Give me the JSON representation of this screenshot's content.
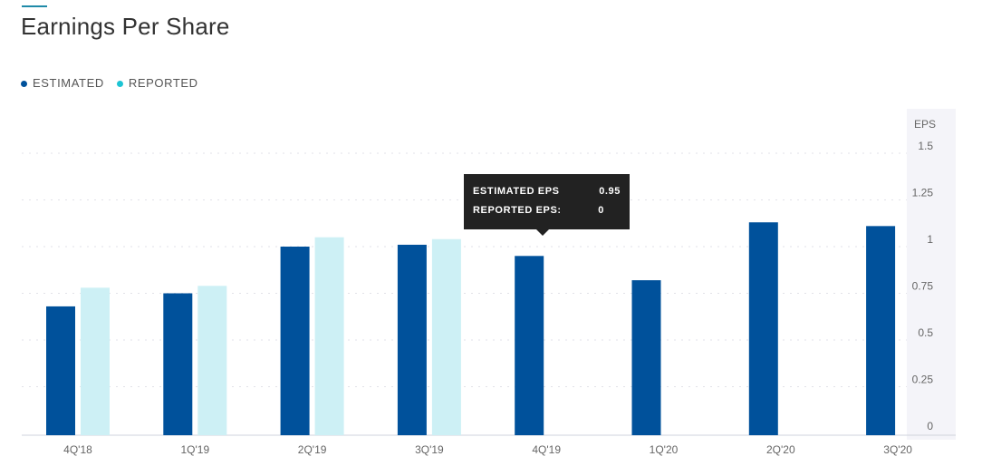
{
  "header": {
    "title": "Earnings Per Share"
  },
  "legend": [
    {
      "label": "ESTIMATED",
      "color": "#00519b"
    },
    {
      "label": "REPORTED",
      "color": "#1dc4d4"
    }
  ],
  "tooltip": {
    "rows": [
      {
        "label": "ESTIMATED EPS",
        "value": "0.95"
      },
      {
        "label": "REPORTED EPS:",
        "value": "0"
      }
    ]
  },
  "chart_data": {
    "type": "bar",
    "categories": [
      "4Q'18",
      "1Q'19",
      "2Q'19",
      "3Q'19",
      "4Q'19",
      "1Q'20",
      "2Q'20",
      "3Q'20"
    ],
    "series": [
      {
        "name": "ESTIMATED",
        "color": "#00519b",
        "values": [
          0.68,
          0.75,
          1.0,
          1.01,
          0.95,
          0.82,
          1.13,
          1.11
        ]
      },
      {
        "name": "REPORTED",
        "color": "#cdf0f5",
        "values": [
          0.78,
          0.79,
          1.05,
          1.04,
          null,
          null,
          null,
          null
        ]
      }
    ],
    "title": "Earnings Per Share",
    "ylabel": "EPS",
    "ylim": [
      0,
      1.5
    ],
    "yticks": [
      "0",
      "0.25",
      "0.5",
      "0.75",
      "1",
      "1.25",
      "1.5"
    ],
    "grid": true,
    "legend_position": "top-left"
  }
}
